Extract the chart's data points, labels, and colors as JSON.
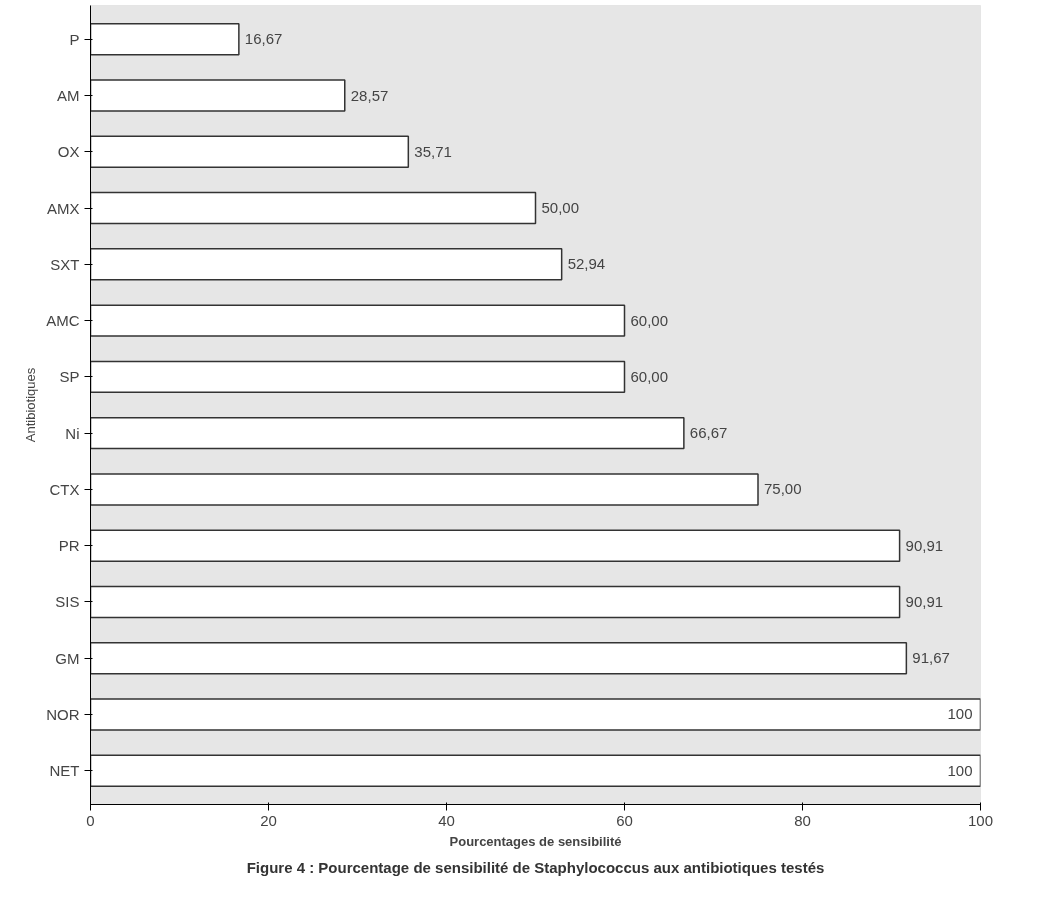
{
  "chart_data": {
    "type": "bar",
    "orientation": "horizontal",
    "categories": [
      "P",
      "AM",
      "OX",
      "AMX",
      "SXT",
      "AMC",
      "SP",
      "Ni",
      "CTX",
      "PR",
      "SIS",
      "GM",
      "NOR",
      "NET"
    ],
    "values": [
      16.67,
      28.57,
      35.71,
      50.0,
      52.94,
      60.0,
      60.0,
      66.67,
      75.0,
      90.91,
      90.91,
      91.67,
      100,
      100
    ],
    "value_labels": [
      "16,67",
      "28,57",
      "35,71",
      "50,00",
      "52,94",
      "60,00",
      "60,00",
      "66,67",
      "75,00",
      "90,91",
      "90,91",
      "91,67",
      "100",
      "100"
    ],
    "color": "#ffffff",
    "xlim": [
      0,
      100
    ],
    "xticks": [
      0,
      20,
      40,
      60,
      80,
      100
    ],
    "xlabel": "Pourcentages de sensibilité",
    "ylabel": "Antibiotiques",
    "annotations": [
      "Figure 4 : Pourcentage de sensibilité de Staphylococcus aux antibiotiques testés"
    ]
  }
}
